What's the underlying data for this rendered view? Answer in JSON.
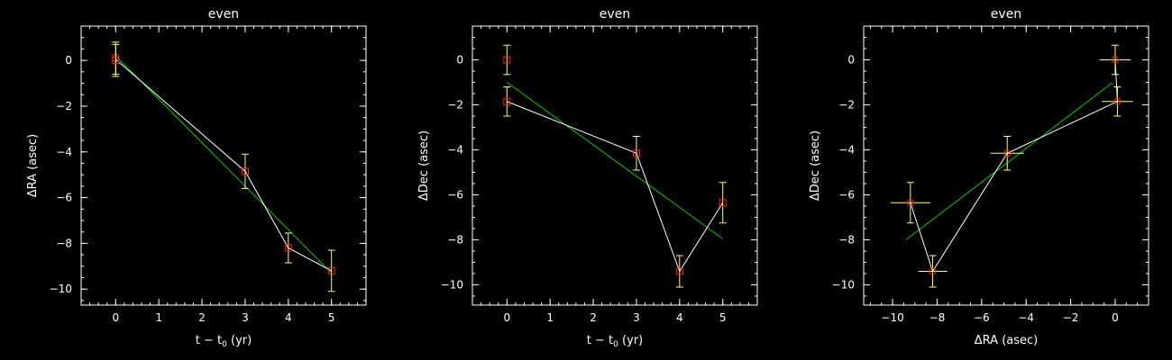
{
  "colors": {
    "background": "#000000",
    "axes": "#ffffff",
    "connecting_line": "#ffffff",
    "fit_line": "#00cc00",
    "marker": "#ff2020",
    "error_bar": "#ffff66"
  },
  "chart_data": [
    {
      "type": "scatter",
      "title": "even",
      "xlabel_main": "t − t",
      "xlabel_sub": "0",
      "xlabel_tail": " (yr)",
      "ylabel": "ΔRA (asec)",
      "xlim": [
        -0.8,
        5.8
      ],
      "ylim": [
        -10.7,
        1.5
      ],
      "xticks": [
        0,
        1,
        2,
        3,
        4,
        5
      ],
      "yticks": [
        0,
        -2,
        -4,
        -6,
        -8,
        -10
      ],
      "minor_x_step": 0.2,
      "minor_y_step": 0.5,
      "marker_shape": "square",
      "grid": false,
      "points": [
        {
          "x": 0,
          "y": 0.1,
          "yerr": 0.7
        },
        {
          "x": 0,
          "y": 0.0,
          "yerr": 0.7
        },
        {
          "x": 3,
          "y": -4.85,
          "yerr": 0.75
        },
        {
          "x": 4,
          "y": -8.2,
          "yerr": 0.65
        },
        {
          "x": 5,
          "y": -9.2,
          "yerr": 0.9
        }
      ],
      "connect_line": [
        [
          0,
          0.05
        ],
        [
          3,
          -4.85
        ],
        [
          4,
          -8.2
        ],
        [
          5,
          -9.2
        ]
      ],
      "fit_line": [
        [
          0,
          0.2
        ],
        [
          5,
          -9.3
        ]
      ]
    },
    {
      "type": "scatter",
      "title": "even",
      "xlabel_main": "t − t",
      "xlabel_sub": "0",
      "xlabel_tail": " (yr)",
      "ylabel": "ΔDec (asec)",
      "xlim": [
        -0.8,
        5.8
      ],
      "ylim": [
        -10.9,
        1.5
      ],
      "xticks": [
        0,
        1,
        2,
        3,
        4,
        5
      ],
      "yticks": [
        0,
        -2,
        -4,
        -6,
        -8,
        -10
      ],
      "minor_x_step": 0.2,
      "minor_y_step": 0.5,
      "marker_shape": "square",
      "grid": false,
      "points": [
        {
          "x": 0,
          "y": 0.0,
          "yerr": 0.65
        },
        {
          "x": 0,
          "y": -1.85,
          "yerr": 0.65
        },
        {
          "x": 3,
          "y": -4.15,
          "yerr": 0.75
        },
        {
          "x": 4,
          "y": -9.4,
          "yerr": 0.7
        },
        {
          "x": 5,
          "y": -6.35,
          "yerr": 0.9
        }
      ],
      "connect_line": [
        [
          0,
          -1.85
        ],
        [
          3,
          -4.15
        ],
        [
          4,
          -9.4
        ],
        [
          5,
          -6.35
        ]
      ],
      "fit_line": [
        [
          0,
          -1.0
        ],
        [
          5,
          -7.95
        ]
      ]
    },
    {
      "type": "scatter",
      "title": "even",
      "xlabel": "ΔRA (asec)",
      "ylabel": "ΔDec (asec)",
      "xlim": [
        -11.3,
        1.5
      ],
      "ylim": [
        -10.9,
        1.5
      ],
      "xticks": [
        -10,
        -8,
        -6,
        -4,
        -2,
        0
      ],
      "yticks": [
        0,
        -2,
        -4,
        -6,
        -8,
        -10
      ],
      "minor_x_step": 0.5,
      "minor_y_step": 0.5,
      "marker_shape": "circle",
      "grid": false,
      "points": [
        {
          "x": 0.0,
          "y": 0.0,
          "xerr": 0.7,
          "yerr": 0.65
        },
        {
          "x": 0.1,
          "y": -1.85,
          "xerr": 0.7,
          "yerr": 0.65
        },
        {
          "x": -4.85,
          "y": -4.15,
          "xerr": 0.75,
          "yerr": 0.75
        },
        {
          "x": -8.2,
          "y": -9.4,
          "xerr": 0.65,
          "yerr": 0.7
        },
        {
          "x": -9.2,
          "y": -6.35,
          "xerr": 0.9,
          "yerr": 0.9
        }
      ],
      "connect_line": [
        [
          0.0,
          0.0
        ],
        [
          0.1,
          -1.85
        ],
        [
          -4.85,
          -4.15
        ],
        [
          -8.2,
          -9.4
        ],
        [
          -9.2,
          -6.35
        ]
      ],
      "fit_line": [
        [
          -9.4,
          -8.0
        ],
        [
          -0.1,
          -1.0
        ]
      ]
    }
  ]
}
